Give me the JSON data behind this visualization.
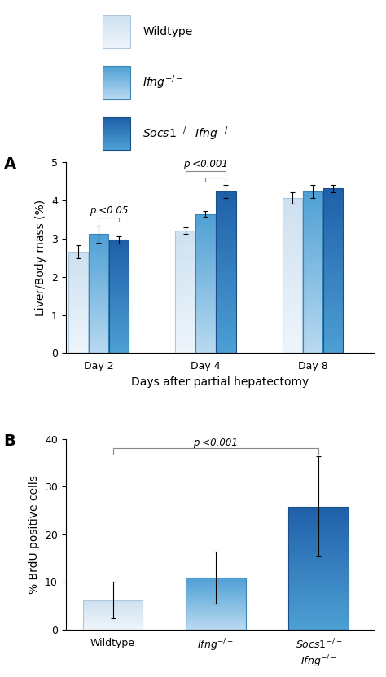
{
  "panel_A": {
    "groups": [
      "Day 2",
      "Day 4",
      "Day 8"
    ],
    "values": [
      [
        2.65,
        3.12,
        2.97
      ],
      [
        3.22,
        3.65,
        4.25
      ],
      [
        4.06,
        4.25,
        4.32
      ]
    ],
    "errors": [
      [
        0.17,
        0.22,
        0.1
      ],
      [
        0.08,
        0.07,
        0.17
      ],
      [
        0.15,
        0.17,
        0.1
      ]
    ],
    "ylabel": "Liver/Body mass (%)",
    "xlabel": "Days after partial hepatectomy",
    "ylim": [
      0,
      5
    ],
    "yticks": [
      0,
      1,
      2,
      3,
      4,
      5
    ]
  },
  "panel_B": {
    "categories": [
      "Wildtype",
      "$Ifng^{-/-}$",
      "$Socs1^{-/-}$\n$Ifng^{-/-}$"
    ],
    "values": [
      6.2,
      10.9,
      25.8
    ],
    "errors": [
      3.8,
      5.5,
      10.5
    ],
    "ylabel": "% BrdU positive cells",
    "ylim": [
      0,
      40
    ],
    "yticks": [
      0,
      10,
      20,
      30,
      40
    ]
  },
  "bar_colors": [
    {
      "top": "#eef5fb",
      "bot": "#cde0f0",
      "edge": "#adc8de"
    },
    {
      "top": "#b8d9f0",
      "bot": "#4d9fd4",
      "edge": "#3a85b5"
    },
    {
      "top": "#4d9fd4",
      "bot": "#1e5fa8",
      "edge": "#1a4f8a"
    }
  ],
  "legend_labels": [
    "Wildtype",
    "$Ifng^{-/-}$",
    "$Socs1^{-/-}Ifng^{-/-}$"
  ],
  "axis_label_fontsize": 10,
  "tick_fontsize": 9,
  "legend_fontsize": 10,
  "sig_color": "#666666"
}
